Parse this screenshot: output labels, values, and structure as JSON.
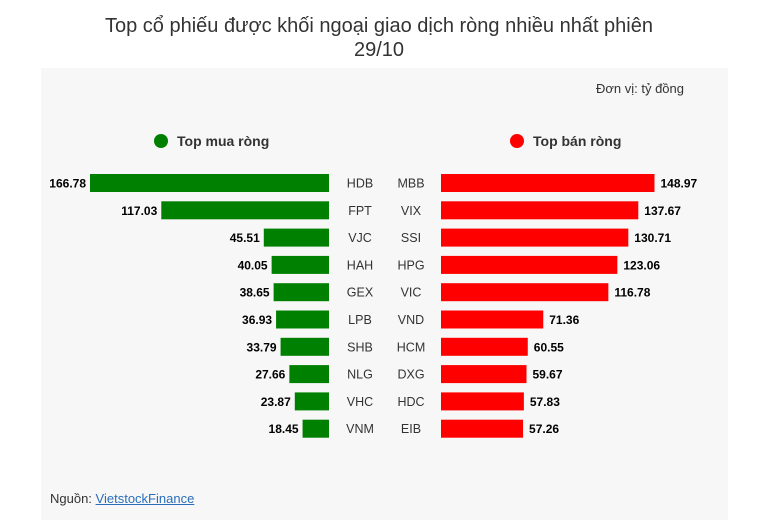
{
  "title": {
    "line1": "Top cổ phiếu được khối ngoại giao dịch ròng nhiều nhất phiên",
    "line2": "29/10"
  },
  "unit_label": "Đơn vị: tỷ đồng",
  "colors": {
    "buy": "#008000",
    "sell": "#ff0000"
  },
  "source": {
    "label": "Nguồn:",
    "link": "VietstockFinance"
  },
  "chart_data": [
    {
      "type": "bar",
      "orientation": "horizontal",
      "direction": "leftward",
      "series_name": "Top mua ròng",
      "color": "#008000",
      "categories": [
        "HDB",
        "FPT",
        "VJC",
        "HAH",
        "GEX",
        "LPB",
        "SHB",
        "NLG",
        "VHC",
        "VNM"
      ],
      "values": [
        166.78,
        117.03,
        45.51,
        40.05,
        38.65,
        36.93,
        33.79,
        27.66,
        23.87,
        18.45
      ],
      "value_labels": [
        "166.78",
        "117.03",
        "45.51",
        "40.05",
        "38.65",
        "36.93",
        "33.79",
        "27.66",
        "23.87",
        "18.45"
      ]
    },
    {
      "type": "bar",
      "orientation": "horizontal",
      "direction": "rightward",
      "series_name": "Top bán ròng",
      "color": "#ff0000",
      "categories": [
        "MBB",
        "VIX",
        "SSI",
        "HPG",
        "VIC",
        "VND",
        "HCM",
        "DXG",
        "HDC",
        "EIB"
      ],
      "values": [
        148.97,
        137.67,
        130.71,
        123.06,
        116.78,
        71.36,
        60.55,
        59.67,
        57.83,
        57.26
      ],
      "value_labels": [
        "148.97",
        "137.67",
        "130.71",
        "123.06",
        "116.78",
        "71.36",
        "60.55",
        "59.67",
        "57.83",
        "57.26"
      ]
    }
  ]
}
